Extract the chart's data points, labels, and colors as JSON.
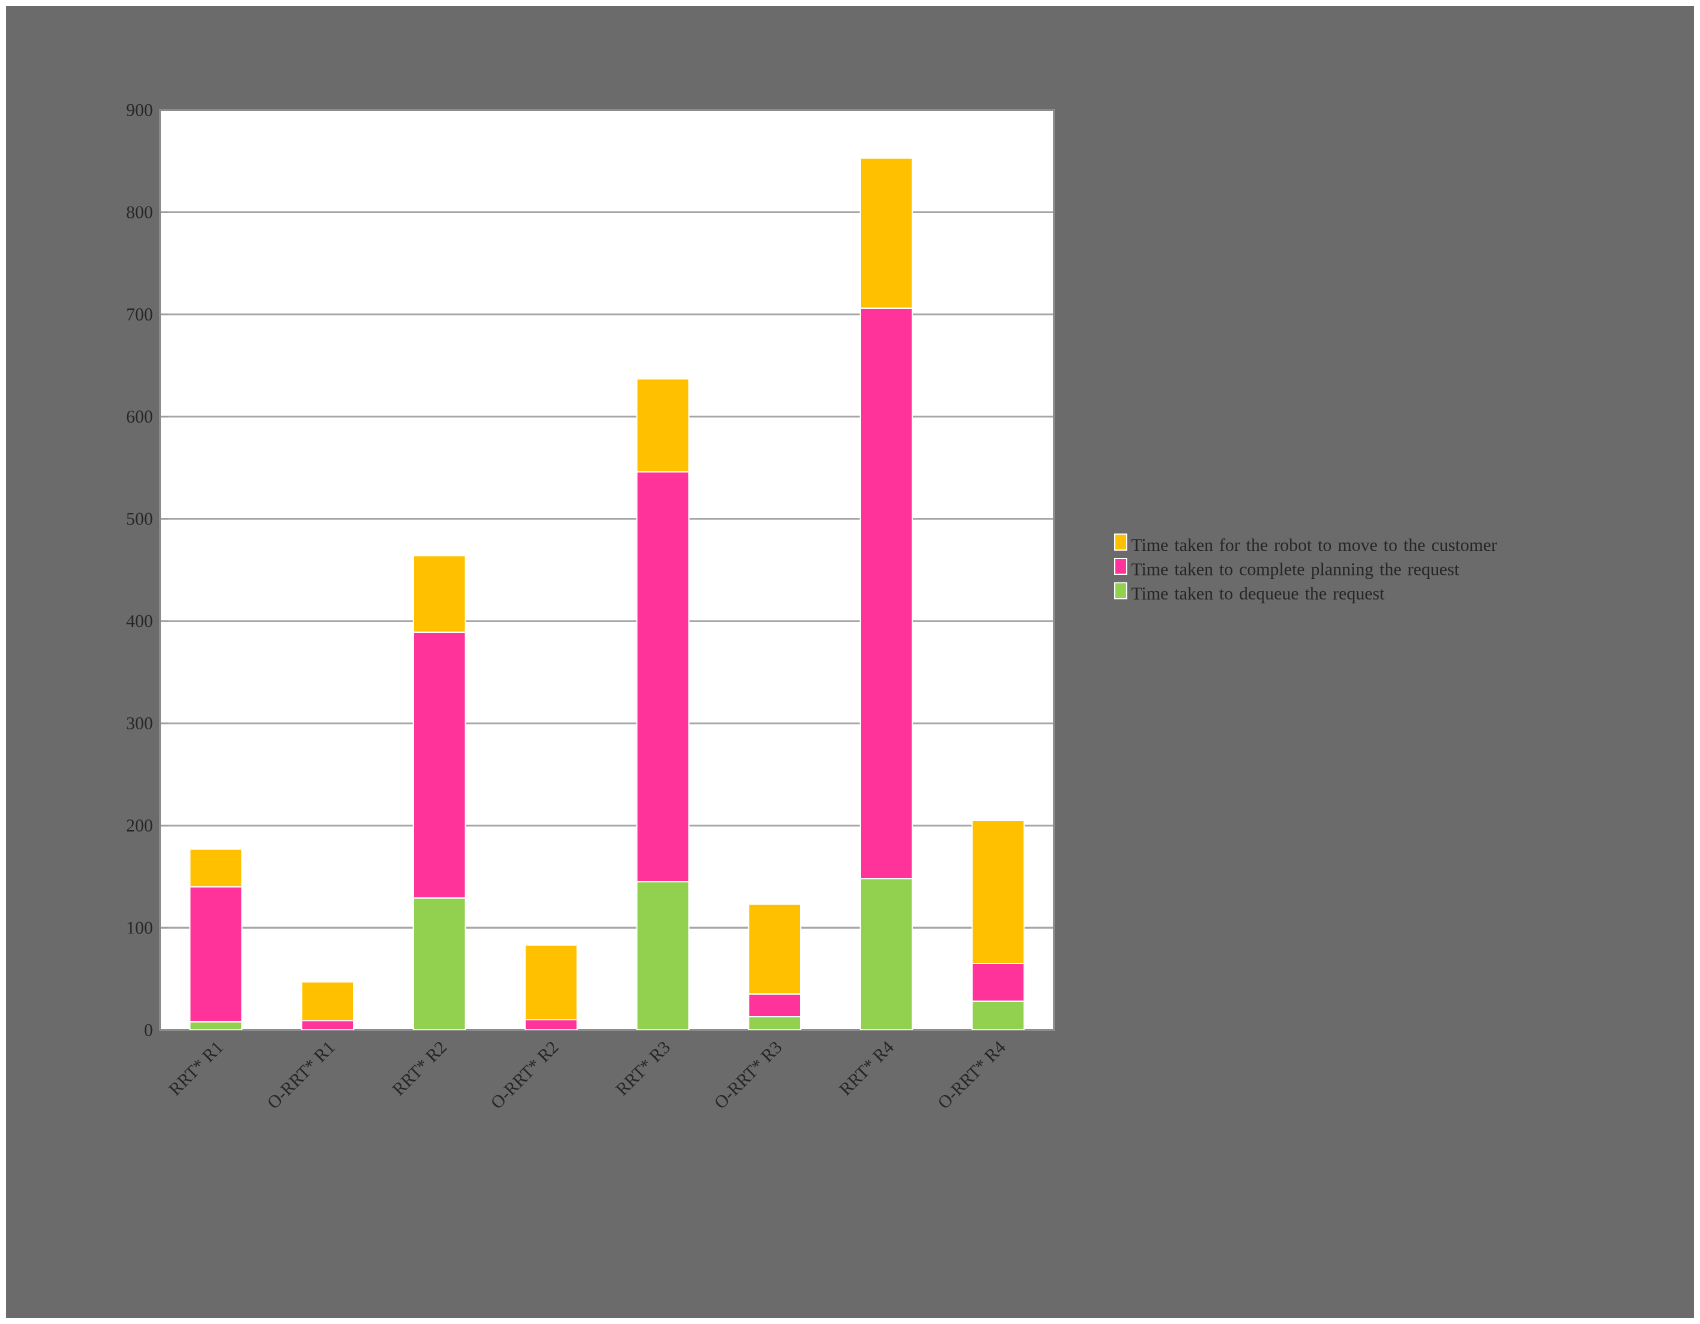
{
  "chart_data": {
    "type": "bar",
    "stacked": true,
    "categories": [
      "RRT* R1",
      "O-RRT* R1",
      "RRT* R2",
      "O-RRT* R2",
      "RRT* R3",
      "O-RRT* R3",
      "RRT* R4",
      "O-RRT* R4"
    ],
    "series": [
      {
        "name": "Time taken to dequeue the request",
        "color": "#92d050",
        "values": [
          8,
          null,
          129,
          null,
          145,
          13,
          148,
          28
        ]
      },
      {
        "name": "Time taken to complete planning the request",
        "color": "#ff3399",
        "values": [
          132,
          9,
          260,
          10,
          401,
          22,
          558,
          37
        ]
      },
      {
        "name": "Time taken for the robot to move to the customer",
        "color": "#ffc000",
        "values": [
          37,
          38,
          75,
          73,
          91,
          88,
          147,
          140
        ]
      }
    ],
    "ylim": [
      0,
      900
    ],
    "yticks": [
      0,
      100,
      200,
      300,
      400,
      500,
      600,
      700,
      800,
      900
    ],
    "grid": "y",
    "legend": "right"
  }
}
